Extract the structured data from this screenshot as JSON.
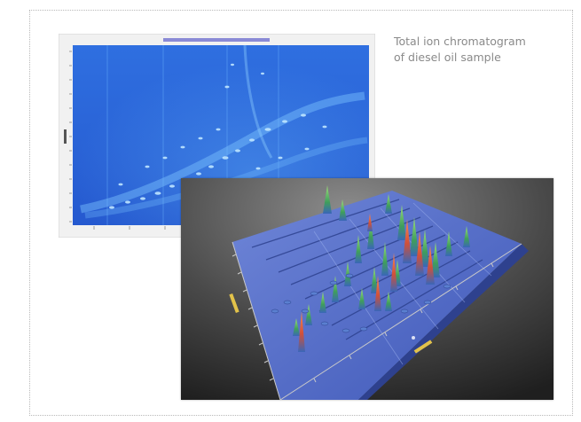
{
  "caption": {
    "line1": "Total ion chromatogram",
    "line2": "of diesel oil sample"
  }
}
